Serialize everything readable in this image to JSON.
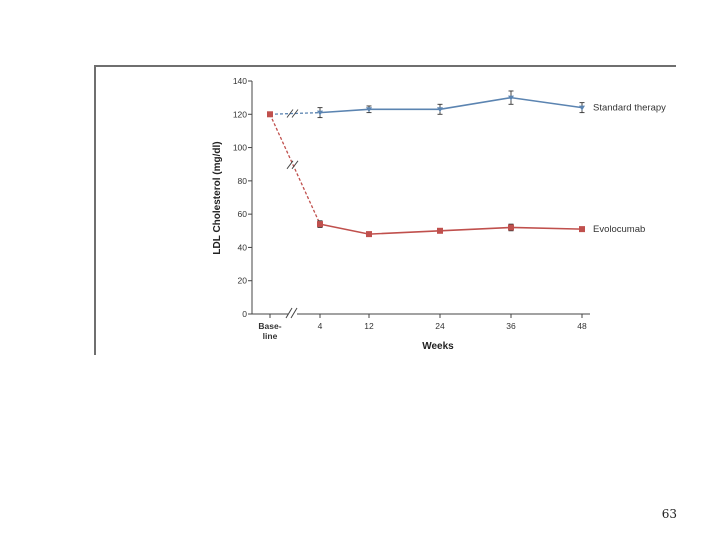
{
  "page": {
    "number": "63"
  },
  "chart_data": {
    "type": "line",
    "title": "",
    "xlabel": "Weeks",
    "ylabel": "LDL Cholesterol (mg/dl)",
    "categories": [
      "Base-\nline",
      "4",
      "12",
      "24",
      "36",
      "48"
    ],
    "x_axis_break": true,
    "ylim": [
      0,
      140
    ],
    "yticks": [
      0,
      20,
      40,
      60,
      80,
      100,
      120,
      140
    ],
    "grid": false,
    "legend": "inline labels at right end of each line",
    "series": [
      {
        "name": "Standard therapy",
        "color": "#5b84b1",
        "marker": "triangle",
        "values": [
          120,
          121,
          123,
          123,
          130,
          124
        ],
        "error": [
          0,
          3,
          2,
          3,
          4,
          3
        ]
      },
      {
        "name": "Evolocumab",
        "color": "#c0504d",
        "marker": "square",
        "values": [
          120,
          54,
          48,
          50,
          52,
          51
        ],
        "error": [
          0,
          2,
          1,
          1,
          2,
          1
        ]
      }
    ]
  }
}
